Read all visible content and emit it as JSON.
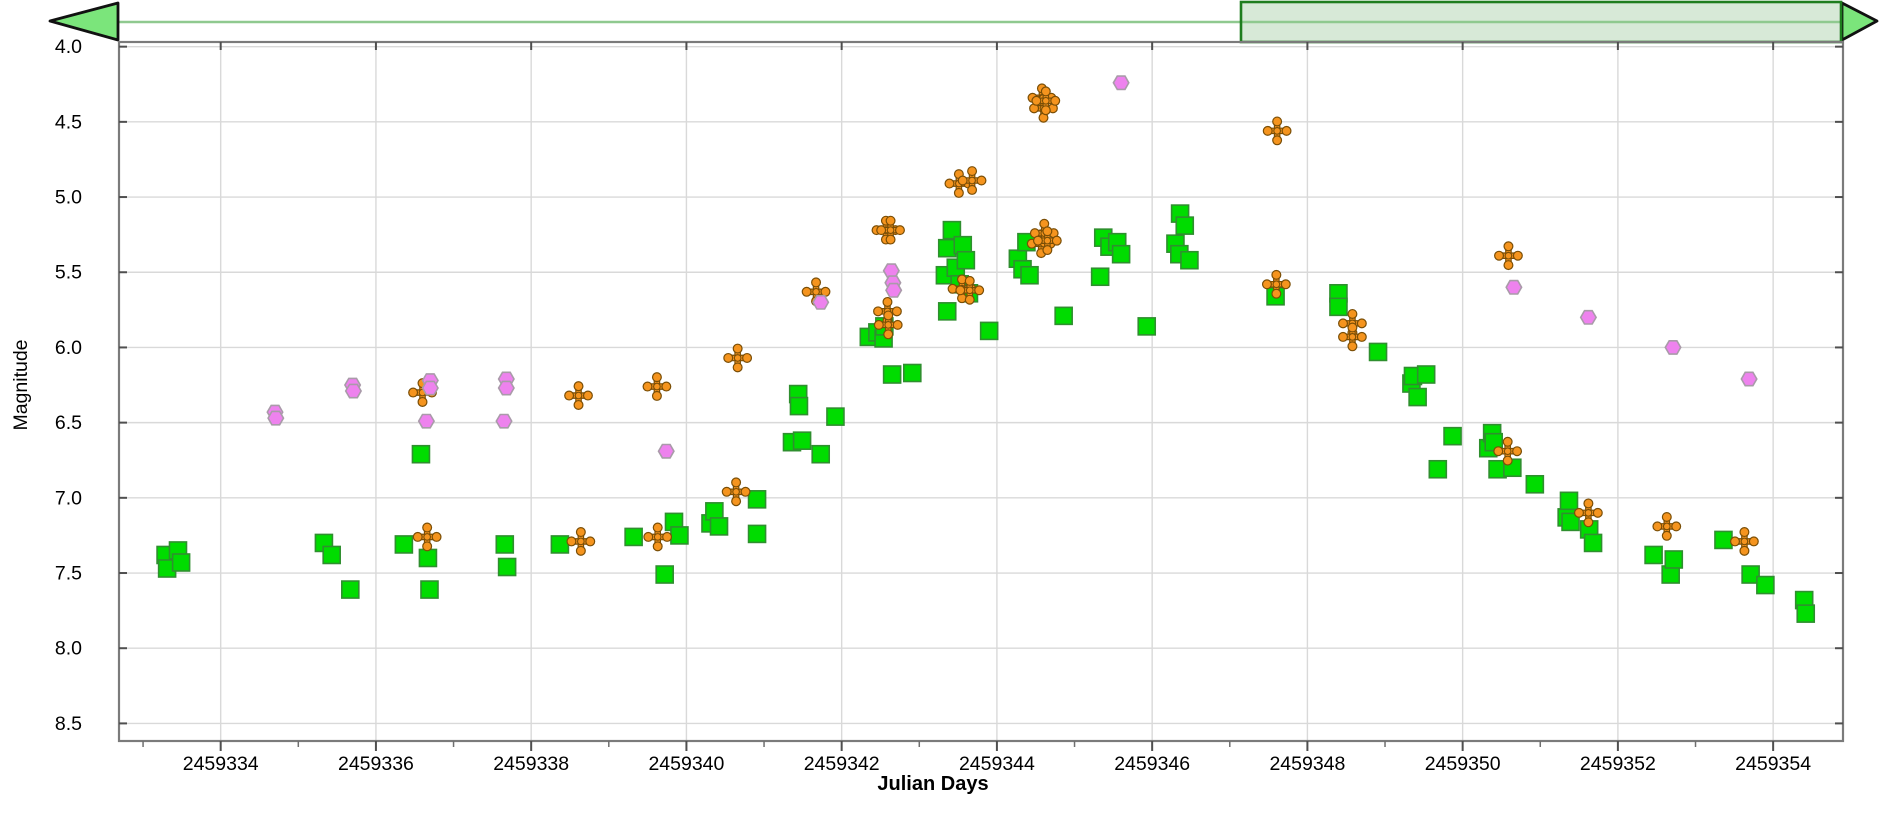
{
  "scrollbar": {
    "left_arrow_icon": "left-triangle",
    "right_arrow_icon": "right-triangle",
    "arrow_fill": "#7BE57B",
    "arrow_stroke": "#111111",
    "track_color": "#8FC98F",
    "thumb_fill": "#D7E9D7",
    "thumb_border": "#1E7D1E"
  },
  "chart_data": {
    "type": "scatter",
    "title": "",
    "xlabel": "Julian Days",
    "ylabel": "Magnitude",
    "xlim": [
      2459332.69,
      2459354.9
    ],
    "ylim": [
      3.969,
      8.617
    ],
    "y_axis_direction": "inverted-magnitude-scale",
    "grid": true,
    "legend_position": "none",
    "x_major_ticks": [
      2459334,
      2459336,
      2459338,
      2459340,
      2459342,
      2459344,
      2459346,
      2459348,
      2459350,
      2459352,
      2459354
    ],
    "x_minor_ticks": [
      2459333,
      2459335,
      2459337,
      2459339,
      2459341,
      2459343,
      2459345,
      2459347,
      2459349,
      2459351,
      2459353
    ],
    "y_ticks": [
      4.0,
      4.5,
      5.0,
      5.5,
      6.0,
      6.5,
      7.0,
      7.5,
      8.0,
      8.5
    ],
    "series": [
      {
        "name": "green-squares",
        "marker": "square",
        "color": "#00DC00",
        "edge": "#2F8F2F",
        "points": [
          [
            2459333.29,
            7.38
          ],
          [
            2459333.31,
            7.47
          ],
          [
            2459333.45,
            7.35
          ],
          [
            2459333.49,
            7.43
          ],
          [
            2459335.33,
            7.3
          ],
          [
            2459335.43,
            7.38
          ],
          [
            2459335.67,
            7.61
          ],
          [
            2459336.36,
            7.31
          ],
          [
            2459336.58,
            6.71
          ],
          [
            2459336.67,
            7.4
          ],
          [
            2459336.69,
            7.61
          ],
          [
            2459337.66,
            7.31
          ],
          [
            2459337.69,
            7.46
          ],
          [
            2459338.37,
            7.31
          ],
          [
            2459339.32,
            7.26
          ],
          [
            2459339.72,
            7.51
          ],
          [
            2459339.84,
            7.16
          ],
          [
            2459339.91,
            7.25
          ],
          [
            2459340.31,
            7.17
          ],
          [
            2459340.36,
            7.09
          ],
          [
            2459340.42,
            7.19
          ],
          [
            2459340.91,
            7.01
          ],
          [
            2459340.91,
            7.24
          ],
          [
            2459341.36,
            6.63
          ],
          [
            2459341.44,
            6.31
          ],
          [
            2459341.45,
            6.39
          ],
          [
            2459341.49,
            6.62
          ],
          [
            2459341.73,
            6.71
          ],
          [
            2459341.92,
            6.46
          ],
          [
            2459342.35,
            5.93
          ],
          [
            2459342.46,
            5.9
          ],
          [
            2459342.54,
            5.94
          ],
          [
            2459342.55,
            5.86
          ],
          [
            2459342.65,
            6.18
          ],
          [
            2459342.91,
            6.17
          ],
          [
            2459343.33,
            5.52
          ],
          [
            2459343.36,
            5.34
          ],
          [
            2459343.36,
            5.76
          ],
          [
            2459343.42,
            5.22
          ],
          [
            2459343.47,
            5.47
          ],
          [
            2459343.52,
            5.58
          ],
          [
            2459343.56,
            5.32
          ],
          [
            2459343.6,
            5.42
          ],
          [
            2459343.64,
            5.64
          ],
          [
            2459343.9,
            5.89
          ],
          [
            2459344.27,
            5.41
          ],
          [
            2459344.33,
            5.48
          ],
          [
            2459344.38,
            5.3
          ],
          [
            2459344.42,
            5.52
          ],
          [
            2459344.86,
            5.79
          ],
          [
            2459345.33,
            5.53
          ],
          [
            2459345.37,
            5.27
          ],
          [
            2459345.45,
            5.33
          ],
          [
            2459345.55,
            5.3
          ],
          [
            2459345.6,
            5.38
          ],
          [
            2459345.93,
            5.86
          ],
          [
            2459346.3,
            5.31
          ],
          [
            2459346.35,
            5.38
          ],
          [
            2459346.36,
            5.11
          ],
          [
            2459346.42,
            5.19
          ],
          [
            2459346.48,
            5.42
          ],
          [
            2459347.59,
            5.66
          ],
          [
            2459348.4,
            5.64
          ],
          [
            2459348.4,
            5.73
          ],
          [
            2459348.91,
            6.03
          ],
          [
            2459349.34,
            6.24
          ],
          [
            2459349.36,
            6.19
          ],
          [
            2459349.42,
            6.33
          ],
          [
            2459349.53,
            6.18
          ],
          [
            2459349.68,
            6.81
          ],
          [
            2459349.87,
            6.59
          ],
          [
            2459350.33,
            6.67
          ],
          [
            2459350.38,
            6.57
          ],
          [
            2459350.4,
            6.63
          ],
          [
            2459350.45,
            6.81
          ],
          [
            2459350.64,
            6.8
          ],
          [
            2459350.93,
            6.91
          ],
          [
            2459351.34,
            7.13
          ],
          [
            2459351.37,
            7.02
          ],
          [
            2459351.39,
            7.16
          ],
          [
            2459351.63,
            7.21
          ],
          [
            2459351.68,
            7.3
          ],
          [
            2459352.46,
            7.38
          ],
          [
            2459352.68,
            7.51
          ],
          [
            2459352.72,
            7.41
          ],
          [
            2459353.36,
            7.28
          ],
          [
            2459353.71,
            7.51
          ],
          [
            2459353.9,
            7.58
          ],
          [
            2459354.4,
            7.68
          ],
          [
            2459354.42,
            7.77
          ]
        ]
      },
      {
        "name": "orange-crosses",
        "marker": "cross",
        "color": "#F5941E",
        "edge": "#7A4E06",
        "points": [
          [
            2459336.6,
            6.3
          ],
          [
            2459336.66,
            7.26
          ],
          [
            2459338.61,
            6.32
          ],
          [
            2459338.64,
            7.29
          ],
          [
            2459339.62,
            6.26
          ],
          [
            2459339.63,
            7.26
          ],
          [
            2459340.64,
            6.96
          ],
          [
            2459340.66,
            6.07
          ],
          [
            2459341.67,
            5.63
          ],
          [
            2459342.57,
            5.22
          ],
          [
            2459342.63,
            5.22
          ],
          [
            2459342.59,
            5.76
          ],
          [
            2459342.6,
            5.85
          ],
          [
            2459343.51,
            4.91
          ],
          [
            2459343.68,
            4.89
          ],
          [
            2459343.55,
            5.61
          ],
          [
            2459343.65,
            5.62
          ],
          [
            2459344.58,
            4.34
          ],
          [
            2459344.6,
            4.41
          ],
          [
            2459344.63,
            4.36
          ],
          [
            2459344.57,
            5.31
          ],
          [
            2459344.61,
            5.24
          ],
          [
            2459344.65,
            5.29
          ],
          [
            2459347.6,
            5.58
          ],
          [
            2459347.61,
            4.56
          ],
          [
            2459348.58,
            5.84
          ],
          [
            2459348.58,
            5.93
          ],
          [
            2459350.58,
            6.69
          ],
          [
            2459350.59,
            5.39
          ],
          [
            2459351.62,
            7.1
          ],
          [
            2459352.63,
            7.19
          ],
          [
            2459353.63,
            7.29
          ]
        ]
      },
      {
        "name": "violet-hexagons",
        "marker": "hexagon",
        "color": "#EE82EE",
        "edge": "#A99BA9",
        "points": [
          [
            2459334.7,
            6.43
          ],
          [
            2459334.71,
            6.47
          ],
          [
            2459335.7,
            6.25
          ],
          [
            2459335.71,
            6.29
          ],
          [
            2459336.65,
            6.49
          ],
          [
            2459336.7,
            6.22
          ],
          [
            2459336.7,
            6.27
          ],
          [
            2459337.65,
            6.49
          ],
          [
            2459337.68,
            6.21
          ],
          [
            2459337.68,
            6.27
          ],
          [
            2459339.74,
            6.69
          ],
          [
            2459341.73,
            5.7
          ],
          [
            2459342.64,
            5.49
          ],
          [
            2459342.66,
            5.57
          ],
          [
            2459342.67,
            5.62
          ],
          [
            2459345.6,
            4.24
          ],
          [
            2459350.66,
            5.6
          ],
          [
            2459351.62,
            5.8
          ],
          [
            2459352.71,
            6.0
          ],
          [
            2459353.69,
            6.21
          ]
        ]
      }
    ]
  }
}
